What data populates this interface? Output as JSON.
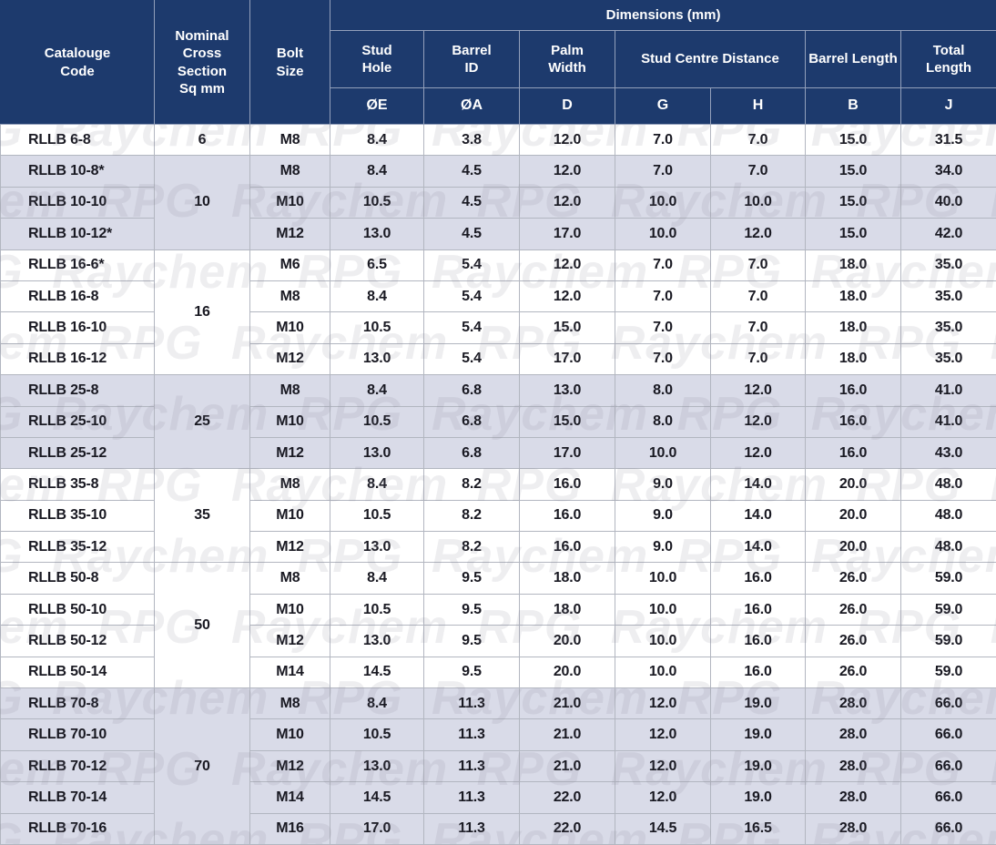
{
  "colors": {
    "header_bg": "#1d3a6d",
    "header_text": "#ffffff",
    "row_shaded_bg": "#d9dbe8",
    "row_plain_bg": "#ffffff",
    "body_text": "#191922",
    "grid_line": "#b2b6c0"
  },
  "watermark": {
    "text": "RPG Raychem"
  },
  "table": {
    "header": {
      "catalogue_code": "Catalouge\nCode",
      "nominal_cross_section": "Nominal\nCross\nSection\nSq mm",
      "bolt_size": "Bolt\nSize",
      "dimensions_group": "Dimensions (mm)",
      "sub_columns": [
        {
          "label": "Stud\nHole"
        },
        {
          "label": "Barrel\nID"
        },
        {
          "label": "Palm\nWidth"
        },
        {
          "label": "Stud Centre Distance"
        },
        {
          "label": "Barrel Length"
        },
        {
          "label": "Total\nLength"
        }
      ],
      "symbol_row": [
        "ØE",
        "ØA",
        "D",
        "G",
        "H",
        "B",
        "J"
      ]
    },
    "groups": [
      {
        "nominal": "6",
        "shaded": false,
        "rows": [
          [
            "RLLB 6-8",
            "M8",
            "8.4",
            "3.8",
            "12.0",
            "7.0",
            "7.0",
            "15.0",
            "31.5"
          ]
        ]
      },
      {
        "nominal": "10",
        "shaded": true,
        "rows": [
          [
            "RLLB 10-8*",
            "M8",
            "8.4",
            "4.5",
            "12.0",
            "7.0",
            "7.0",
            "15.0",
            "34.0"
          ],
          [
            "RLLB 10-10",
            "M10",
            "10.5",
            "4.5",
            "12.0",
            "10.0",
            "10.0",
            "15.0",
            "40.0"
          ],
          [
            "RLLB 10-12*",
            "M12",
            "13.0",
            "4.5",
            "17.0",
            "10.0",
            "12.0",
            "15.0",
            "42.0"
          ]
        ]
      },
      {
        "nominal": "16",
        "shaded": false,
        "rows": [
          [
            "RLLB 16-6*",
            "M6",
            "6.5",
            "5.4",
            "12.0",
            "7.0",
            "7.0",
            "18.0",
            "35.0"
          ],
          [
            "RLLB 16-8",
            "M8",
            "8.4",
            "5.4",
            "12.0",
            "7.0",
            "7.0",
            "18.0",
            "35.0"
          ],
          [
            "RLLB 16-10",
            "M10",
            "10.5",
            "5.4",
            "15.0",
            "7.0",
            "7.0",
            "18.0",
            "35.0"
          ],
          [
            "RLLB 16-12",
            "M12",
            "13.0",
            "5.4",
            "17.0",
            "7.0",
            "7.0",
            "18.0",
            "35.0"
          ]
        ]
      },
      {
        "nominal": "25",
        "shaded": true,
        "rows": [
          [
            "RLLB 25-8",
            "M8",
            "8.4",
            "6.8",
            "13.0",
            "8.0",
            "12.0",
            "16.0",
            "41.0"
          ],
          [
            "RLLB 25-10",
            "M10",
            "10.5",
            "6.8",
            "15.0",
            "8.0",
            "12.0",
            "16.0",
            "41.0"
          ],
          [
            "RLLB 25-12",
            "M12",
            "13.0",
            "6.8",
            "17.0",
            "10.0",
            "12.0",
            "16.0",
            "43.0"
          ]
        ]
      },
      {
        "nominal": "35",
        "shaded": false,
        "rows": [
          [
            "RLLB 35-8",
            "M8",
            "8.4",
            "8.2",
            "16.0",
            "9.0",
            "14.0",
            "20.0",
            "48.0"
          ],
          [
            "RLLB 35-10",
            "M10",
            "10.5",
            "8.2",
            "16.0",
            "9.0",
            "14.0",
            "20.0",
            "48.0"
          ],
          [
            "RLLB 35-12",
            "M12",
            "13.0",
            "8.2",
            "16.0",
            "9.0",
            "14.0",
            "20.0",
            "48.0"
          ]
        ]
      },
      {
        "nominal": "50",
        "shaded": false,
        "rows": [
          [
            "RLLB 50-8",
            "M8",
            "8.4",
            "9.5",
            "18.0",
            "10.0",
            "16.0",
            "26.0",
            "59.0"
          ],
          [
            "RLLB 50-10",
            "M10",
            "10.5",
            "9.5",
            "18.0",
            "10.0",
            "16.0",
            "26.0",
            "59.0"
          ],
          [
            "RLLB 50-12",
            "M12",
            "13.0",
            "9.5",
            "20.0",
            "10.0",
            "16.0",
            "26.0",
            "59.0"
          ],
          [
            "RLLB 50-14",
            "M14",
            "14.5",
            "9.5",
            "20.0",
            "10.0",
            "16.0",
            "26.0",
            "59.0"
          ]
        ]
      },
      {
        "nominal": "70",
        "shaded": true,
        "rows": [
          [
            "RLLB 70-8",
            "M8",
            "8.4",
            "11.3",
            "21.0",
            "12.0",
            "19.0",
            "28.0",
            "66.0"
          ],
          [
            "RLLB 70-10",
            "M10",
            "10.5",
            "11.3",
            "21.0",
            "12.0",
            "19.0",
            "28.0",
            "66.0"
          ],
          [
            "RLLB 70-12",
            "M12",
            "13.0",
            "11.3",
            "21.0",
            "12.0",
            "19.0",
            "28.0",
            "66.0"
          ],
          [
            "RLLB 70-14",
            "M14",
            "14.5",
            "11.3",
            "22.0",
            "12.0",
            "19.0",
            "28.0",
            "66.0"
          ],
          [
            "RLLB 70-16",
            "M16",
            "17.0",
            "11.3",
            "22.0",
            "14.5",
            "16.5",
            "28.0",
            "66.0"
          ]
        ]
      }
    ]
  }
}
